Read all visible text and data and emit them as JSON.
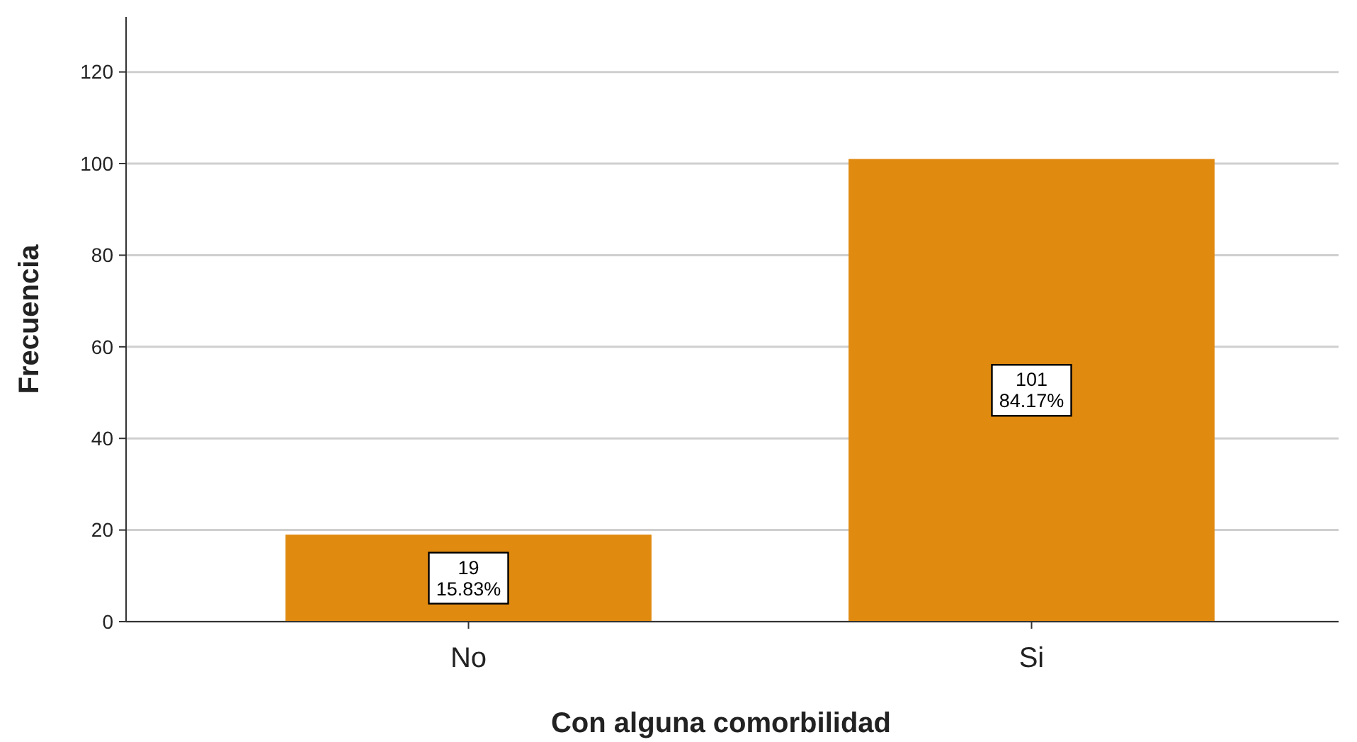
{
  "chart_data": {
    "type": "bar",
    "xlabel": "Con alguna comorbilidad",
    "ylabel": "Frecuencia",
    "categories": [
      "No",
      "Si"
    ],
    "values": [
      19,
      101
    ],
    "value_labels": [
      "19\n15.83%",
      "101\n84.17%"
    ],
    "color": "#e08a10",
    "ylim": [
      0,
      132
    ],
    "yticks": [
      0,
      20,
      40,
      60,
      80,
      100,
      120
    ],
    "grid": "y"
  }
}
